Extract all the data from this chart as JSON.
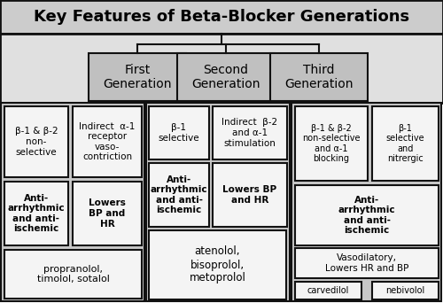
{
  "title": "Key Features of Beta-Blocker Generations",
  "generations": [
    "First\nGeneration",
    "Second\nGeneration",
    "Third\nGeneration"
  ],
  "title_color": "#cccccc",
  "gen_area_color": "#e0e0e0",
  "gen_box_color": "#c0c0c0",
  "section_color": "#c8c8c8",
  "white_box_color": "#f4f4f4",
  "edge_color": "#111111"
}
